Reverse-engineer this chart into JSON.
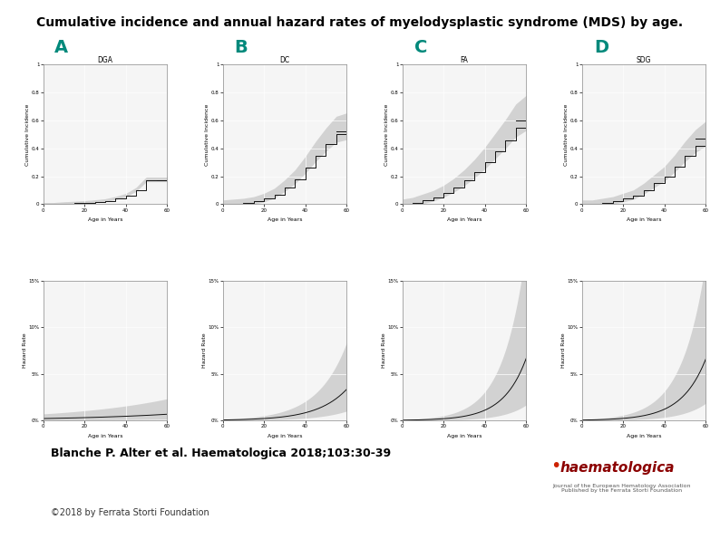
{
  "title": "Cumulative incidence and annual hazard rates of myelodysplastic syndrome (MDS) by age.",
  "title_fontsize": 10,
  "title_fontweight": "bold",
  "panels": [
    "A",
    "B",
    "C",
    "D"
  ],
  "panel_titles_ci": [
    "DGA",
    "DC",
    "FA",
    "SDG"
  ],
  "panel_label_color": "#00897B",
  "panel_label_fontsize": 14,
  "panel_label_fontweight": "bold",
  "citation": "Blanche P. Alter et al. Haematologica 2018;103:30-39",
  "citation_fontsize": 9,
  "citation_fontweight": "bold",
  "copyright": "©2018 by Ferrata Storti Foundation",
  "copyright_fontsize": 7,
  "background_color": "#ffffff",
  "plot_bg_color": "#f5f5f5",
  "ci_line_color": "#111111",
  "ci_fill_color": "#b0b0b0",
  "ci_fill_alpha": 0.5,
  "hazard_line_color": "#111111",
  "hazard_fill_color": "#b0b0b0",
  "hazard_fill_alpha": 0.5,
  "ci_yticks": [
    0,
    0.2,
    0.4,
    0.6,
    0.8,
    1.0
  ],
  "ci_ytick_labels": [
    "0",
    "0.2",
    "0.4",
    "0.6",
    "0.8",
    "1"
  ],
  "hazard_yticks": [
    0,
    0.05,
    0.1,
    0.15
  ],
  "hazard_ytick_labels": [
    "0%",
    "5%",
    "10%",
    "15%"
  ],
  "xlabel": "Age in Years",
  "ci_ylabel": "Cumulative Incidence",
  "hazard_ylabel": "Hazard Rate",
  "grid_color": "#ffffff",
  "grid_alpha": 1.0
}
